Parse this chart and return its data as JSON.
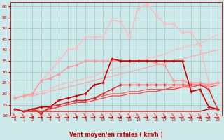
{
  "xlabel": "Vent moyen/en rafales ( km/h )",
  "xlim": [
    -0.5,
    23.5
  ],
  "ylim": [
    10,
    62
  ],
  "yticks": [
    10,
    15,
    20,
    25,
    30,
    35,
    40,
    45,
    50,
    55,
    60
  ],
  "xticks": [
    0,
    1,
    2,
    3,
    4,
    5,
    6,
    7,
    8,
    9,
    10,
    11,
    12,
    13,
    14,
    15,
    16,
    17,
    18,
    19,
    20,
    21,
    22,
    23
  ],
  "bg_color": "#cce8e8",
  "grid_color": "#9dc8c8",
  "series": [
    {
      "x": [
        0,
        1,
        2,
        3,
        4,
        5,
        6,
        7,
        8,
        9,
        10,
        11,
        12,
        13,
        14,
        15,
        16,
        17,
        18,
        19,
        20,
        21,
        22,
        23
      ],
      "y": [
        18,
        19,
        20,
        21,
        22,
        24,
        25,
        26,
        27,
        28,
        30,
        31,
        32,
        33,
        35,
        36,
        37,
        38,
        40,
        41,
        42,
        43,
        45,
        47
      ],
      "color": "#ffbbbb",
      "linewidth": 0.9,
      "marker": null
    },
    {
      "x": [
        0,
        1,
        2,
        3,
        4,
        5,
        6,
        7,
        8,
        9,
        10,
        11,
        12,
        13,
        14,
        15,
        16,
        17,
        18,
        19,
        20,
        21,
        22,
        23
      ],
      "y": [
        18,
        19,
        19,
        20,
        21,
        22,
        23,
        24,
        25,
        26,
        27,
        28,
        29,
        30,
        31,
        32,
        33,
        34,
        35,
        36,
        37,
        38,
        39,
        40
      ],
      "color": "#ffaaaa",
      "linewidth": 0.9,
      "marker": null
    },
    {
      "x": [
        0,
        1,
        2,
        3,
        4,
        5,
        6,
        7,
        8,
        9,
        10,
        11,
        12,
        13,
        14,
        15,
        16,
        17,
        18,
        19,
        20,
        21,
        22,
        23
      ],
      "y": [
        18,
        19,
        20,
        26,
        30,
        35,
        40,
        41,
        46,
        46,
        46,
        54,
        53,
        46,
        59,
        61,
        56,
        52,
        52,
        48,
        48,
        42,
        25,
        25
      ],
      "color": "#ffbbbb",
      "linewidth": 1.0,
      "marker": "o",
      "markersize": 2.0
    },
    {
      "x": [
        0,
        1,
        2,
        3,
        4,
        5,
        6,
        7,
        8,
        9,
        10,
        11,
        12,
        13,
        14,
        15,
        16,
        17,
        18,
        19,
        20,
        21,
        22,
        23
      ],
      "y": [
        18,
        19,
        20,
        26,
        27,
        29,
        32,
        33,
        35,
        35,
        35,
        35,
        35,
        35,
        35,
        35,
        34,
        33,
        26,
        26,
        25,
        25,
        24,
        25
      ],
      "color": "#ff9999",
      "linewidth": 1.0,
      "marker": "o",
      "markersize": 2.0
    },
    {
      "x": [
        0,
        1,
        2,
        3,
        4,
        5,
        6,
        7,
        8,
        9,
        10,
        11,
        12,
        13,
        14,
        15,
        16,
        17,
        18,
        19,
        20,
        21,
        22,
        23
      ],
      "y": [
        13,
        12,
        13,
        14,
        14,
        17,
        18,
        19,
        20,
        24,
        25,
        36,
        35,
        35,
        35,
        35,
        35,
        35,
        35,
        35,
        21,
        22,
        14,
        13
      ],
      "color": "#cc0000",
      "linewidth": 1.2,
      "marker": "+",
      "markersize": 3.5
    },
    {
      "x": [
        0,
        1,
        2,
        3,
        4,
        5,
        6,
        7,
        8,
        9,
        10,
        11,
        12,
        13,
        14,
        15,
        16,
        17,
        18,
        19,
        20,
        21,
        22,
        23
      ],
      "y": [
        13,
        12,
        13,
        11,
        14,
        15,
        16,
        17,
        17,
        18,
        20,
        22,
        24,
        24,
        24,
        24,
        24,
        24,
        24,
        24,
        24,
        24,
        22,
        13
      ],
      "color": "#dd2222",
      "linewidth": 1.0,
      "marker": "+",
      "markersize": 3.0
    },
    {
      "x": [
        0,
        1,
        2,
        3,
        4,
        5,
        6,
        7,
        8,
        9,
        10,
        11,
        12,
        13,
        14,
        15,
        16,
        17,
        18,
        19,
        20,
        21,
        22,
        23
      ],
      "y": [
        13,
        12,
        13,
        12,
        13,
        14,
        15,
        16,
        16,
        17,
        18,
        19,
        19,
        20,
        20,
        21,
        21,
        22,
        22,
        23,
        23,
        24,
        24,
        25
      ],
      "color": "#ee4444",
      "linewidth": 0.9,
      "marker": null
    },
    {
      "x": [
        0,
        1,
        2,
        3,
        4,
        5,
        6,
        7,
        8,
        9,
        10,
        11,
        12,
        13,
        14,
        15,
        16,
        17,
        18,
        19,
        20,
        21,
        22,
        23
      ],
      "y": [
        13,
        12,
        13,
        12,
        13,
        14,
        15,
        16,
        17,
        18,
        19,
        20,
        20,
        21,
        21,
        22,
        22,
        22,
        23,
        23,
        24,
        24,
        23,
        24
      ],
      "color": "#ff5555",
      "linewidth": 0.9,
      "marker": null
    },
    {
      "x": [
        0,
        1,
        2,
        3,
        4,
        5,
        6,
        7,
        8,
        9,
        10,
        11,
        12,
        13,
        14,
        15,
        16,
        17,
        18,
        19,
        20,
        21,
        22,
        23
      ],
      "y": [
        13,
        12,
        12,
        12,
        12,
        12,
        12,
        12,
        12,
        12,
        12,
        12,
        12,
        12,
        12,
        12,
        12,
        12,
        12,
        12,
        12,
        12,
        13,
        13
      ],
      "color": "#cc0000",
      "linewidth": 1.0,
      "marker": null
    }
  ]
}
